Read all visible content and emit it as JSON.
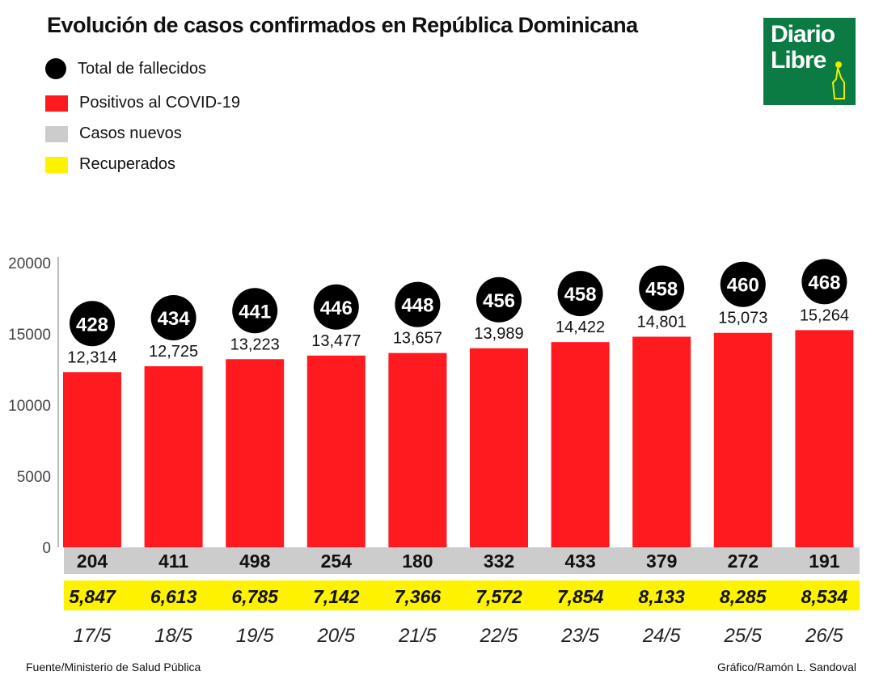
{
  "title": "Evolución de casos confirmados en República Dominicana",
  "legend": [
    {
      "label": "Total de fallecidos",
      "color": "#000000",
      "shape": "circle"
    },
    {
      "label": "Positivos al COVID-19",
      "color": "#ff1a1f",
      "shape": "square"
    },
    {
      "label": "Casos nuevos",
      "color": "#cccccc",
      "shape": "square"
    },
    {
      "label": "Recuperados",
      "color": "#fff200",
      "shape": "square"
    }
  ],
  "logo": {
    "line1": "Diario",
    "line2": "Libre",
    "color": "#0b7a43"
  },
  "footer": {
    "source": "Fuente/Ministerio de Salud Pública",
    "credit": "Gráfico/Ramón L. Sandoval"
  },
  "chart_data": {
    "type": "bar",
    "title": "Evolución de casos confirmados en República Dominicana",
    "categories": [
      "17/5",
      "18/5",
      "19/5",
      "20/5",
      "21/5",
      "22/5",
      "23/5",
      "24/5",
      "25/5",
      "26/5"
    ],
    "ylim": [
      0,
      20000
    ],
    "yticks": [
      0,
      5000,
      10000,
      15000,
      20000
    ],
    "grid": false,
    "legend_position": "top-left",
    "series": [
      {
        "name": "Positivos al COVID-19",
        "values": [
          12314,
          12725,
          13223,
          13477,
          13657,
          13989,
          14422,
          14801,
          15073,
          15264
        ],
        "labels": [
          "12,314",
          "12,725",
          "13,223",
          "13,477",
          "13,657",
          "13,989",
          "14,422",
          "14,801",
          "15,073",
          "15,264"
        ]
      },
      {
        "name": "Total de fallecidos",
        "values": [
          428,
          434,
          441,
          446,
          448,
          456,
          458,
          458,
          460,
          468
        ]
      },
      {
        "name": "Casos nuevos",
        "values": [
          204,
          411,
          498,
          254,
          180,
          332,
          433,
          379,
          272,
          191
        ]
      },
      {
        "name": "Recuperados",
        "values": [
          5847,
          6613,
          6785,
          7142,
          7366,
          7572,
          7854,
          8133,
          8285,
          8534
        ],
        "labels": [
          "5,847",
          "6,613",
          "6,785",
          "7,142",
          "7,366",
          "7,572",
          "7,854",
          "8,133",
          "8,285",
          "8,534"
        ]
      }
    ]
  }
}
